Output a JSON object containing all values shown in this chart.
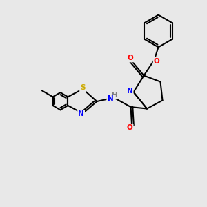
{
  "bg_color": "#e8e8e8",
  "bond_color": "#000000",
  "atom_colors": {
    "N": "#0000ff",
    "O": "#ff0000",
    "S": "#ccaa00",
    "H": "#808080",
    "C": "#000000"
  },
  "font_size": 7.5,
  "lw": 1.5
}
